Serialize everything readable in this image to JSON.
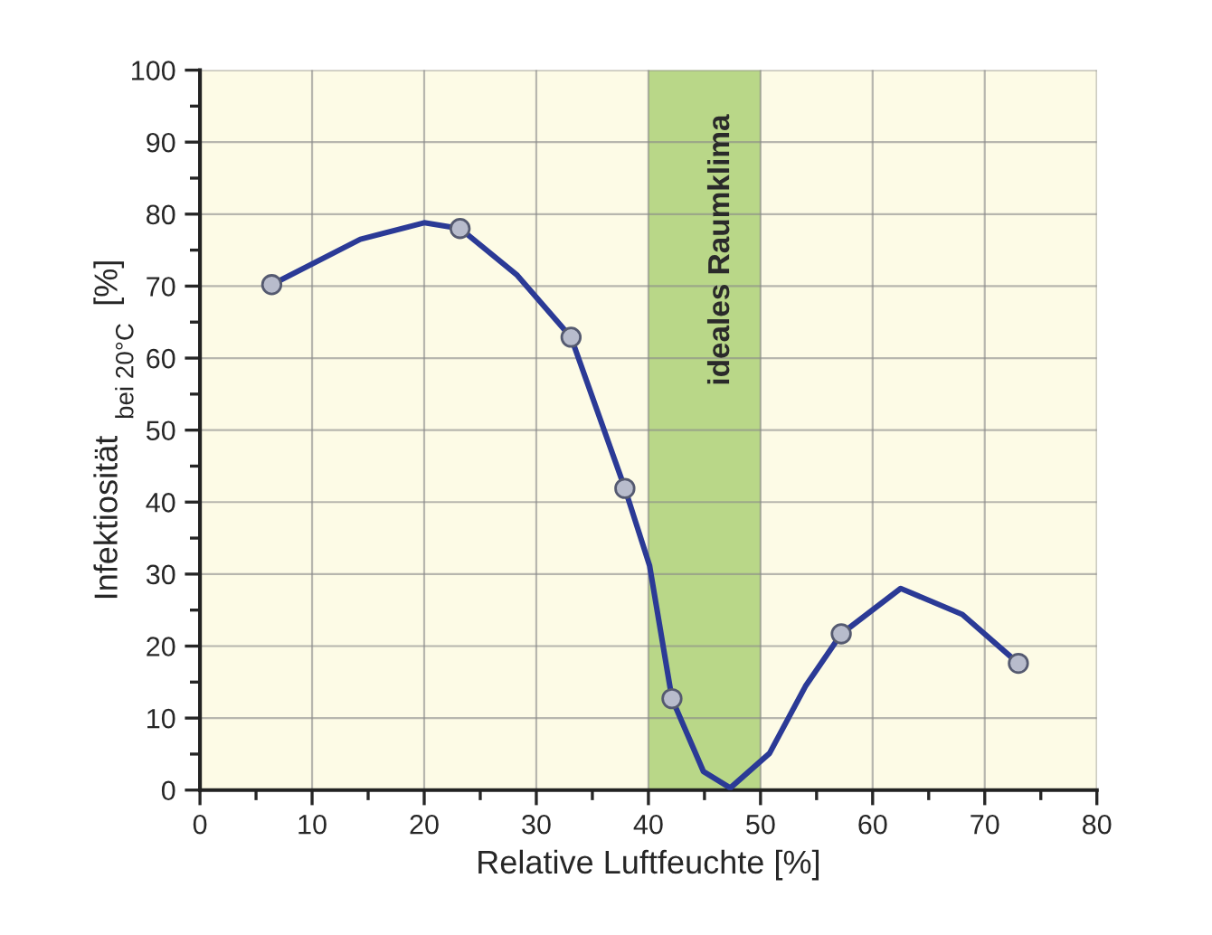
{
  "chart_data": {
    "type": "line",
    "xlabel": "Relative Luftfeuchte [%]",
    "ylabel": "Infektiosität $_{bei 20°C}$ [%]",
    "xlim": [
      0,
      80
    ],
    "xticks": [
      0,
      10,
      20,
      30,
      40,
      50,
      60,
      70,
      80
    ],
    "ylim": [
      0,
      100
    ],
    "yticks": [
      0,
      10,
      20,
      30,
      40,
      50,
      60,
      70,
      80,
      90,
      100
    ],
    "grid": true,
    "bands": [
      {
        "axis": "x",
        "from": 40,
        "to": 50,
        "label": "ideales Raumklima",
        "color": "#8cbf4a"
      }
    ],
    "series": [
      {
        "color": "#2b3a96",
        "marker": "none",
        "x": [
          6.4,
          14.3,
          20,
          23.2,
          28.3,
          33.1,
          37.9,
          40.1,
          42.1,
          44.9,
          47.3,
          50.8,
          54.0,
          57.2,
          62.5,
          68,
          73.0
        ],
        "values": [
          70.2,
          76.5,
          78.8,
          78.0,
          71.5,
          62.9,
          41.9,
          31.2,
          12.7,
          2.6,
          0.3,
          5.1,
          14.4,
          21.7,
          28.0,
          24.4,
          17.6
        ]
      },
      {
        "type": "scatter",
        "color": "#b8bccc",
        "marker": "circle",
        "x": [
          6.4,
          23.2,
          33.1,
          37.9,
          42.1,
          57.2,
          73.0
        ],
        "values": [
          70.2,
          78.0,
          62.9,
          41.9,
          12.7,
          21.7,
          17.6
        ]
      }
    ]
  }
}
